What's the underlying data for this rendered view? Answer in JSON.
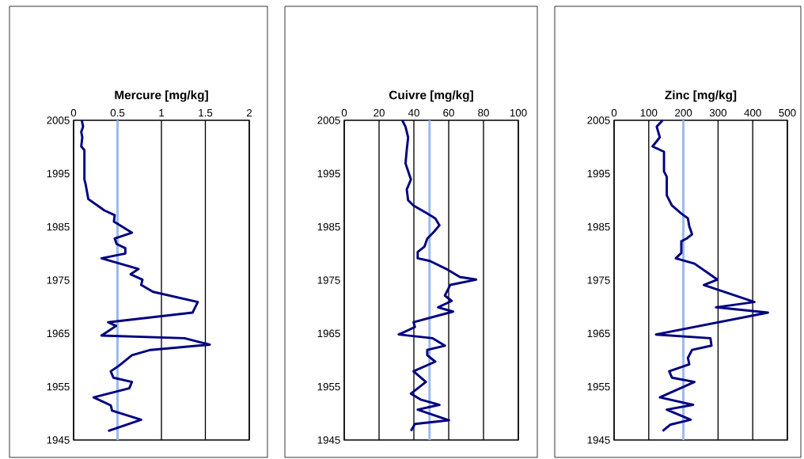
{
  "chart_data": [
    {
      "type": "line",
      "title": "Mercure [mg/kg]",
      "color": "#000080",
      "grid": "x",
      "xlim": [
        0,
        2
      ],
      "xticks": [
        0,
        0.5,
        1,
        1.5,
        2
      ],
      "ylim": [
        1945,
        2005
      ],
      "yticks": [
        1945,
        1955,
        1965,
        1975,
        1985,
        1995,
        2005
      ],
      "ref_lines": [
        {
          "axis": "x",
          "value": 0.5,
          "color": "#9ab9ef"
        }
      ],
      "x": [
        0.093,
        0.108,
        0.087,
        0.099,
        0.087,
        0.123,
        0.123,
        0.138,
        0.168,
        0.273,
        0.348,
        0.468,
        0.459,
        0.664,
        0.468,
        0.49,
        0.589,
        0.589,
        0.318,
        0.739,
        0.649,
        0.784,
        0.769,
        0.904,
        1.414,
        1.354,
        0.393,
        0.483,
        0.318,
        1.264,
        1.55,
        0.874,
        0.664,
        0.514,
        0.423,
        0.453,
        0.664,
        0.634,
        0.228,
        0.423,
        0.438,
        0.769,
        0.393
      ],
      "values": [
        2005,
        2003.8,
        2002.8,
        2001.8,
        2000.1,
        1999.4,
        1993.9,
        1992.9,
        1990.2,
        1989,
        1988.1,
        1987.2,
        1986,
        1983.9,
        1982.8,
        1981.8,
        1981,
        1980,
        1979.1,
        1977.1,
        1976.1,
        1975.1,
        1974.1,
        1972.8,
        1970.9,
        1968.9,
        1967.1,
        1966.4,
        1964.6,
        1964.1,
        1962.9,
        1961.9,
        1960.9,
        1958.9,
        1957.9,
        1956.7,
        1955.9,
        1954.7,
        1953,
        1951.5,
        1950.5,
        1948.8,
        1946.7
      ]
    },
    {
      "type": "line",
      "title": "Cuivre [mg/kg]",
      "color": "#000080",
      "grid": "x",
      "xlim": [
        0,
        100
      ],
      "xticks": [
        0,
        20,
        40,
        60,
        80,
        100
      ],
      "ylim": [
        1945,
        2005
      ],
      "yticks": [
        1945,
        1955,
        1965,
        1975,
        1985,
        1995,
        2005
      ],
      "ref_lines": [
        {
          "axis": "x",
          "value": 49,
          "color": "#9ab9ef"
        }
      ],
      "x": [
        33.3,
        35.2,
        36.7,
        35.9,
        35.2,
        38.3,
        35.9,
        36.7,
        39.8,
        47.7,
        52.3,
        54.7,
        51.6,
        47.7,
        46.1,
        42.2,
        42.2,
        49.2,
        58.6,
        66.4,
        75.8,
        60.9,
        57.8,
        61.7,
        53.9,
        62.5,
        39.8,
        40.6,
        31.3,
        50.8,
        57.8,
        47.7,
        47.7,
        52.3,
        39.8,
        46.9,
        38.3,
        43.8,
        54.7,
        42.2,
        60.2,
        40.6,
        38.3
      ],
      "values": [
        2005,
        2003.8,
        2001.8,
        1999.4,
        1996.9,
        1993.9,
        1992,
        1990,
        1989,
        1987.5,
        1986.6,
        1985.3,
        1984.1,
        1982.8,
        1981.3,
        1980.3,
        1979.1,
        1978.6,
        1977.1,
        1975.6,
        1975.1,
        1974.1,
        1972.1,
        1971.1,
        1969.9,
        1969.1,
        1967.1,
        1966.2,
        1964.8,
        1964.1,
        1962.7,
        1961.9,
        1960.9,
        1959.7,
        1957.9,
        1955.9,
        1953.7,
        1952.6,
        1951.6,
        1950.7,
        1948.7,
        1948,
        1946.7
      ]
    },
    {
      "type": "line",
      "title": "Zinc [mg/kg]",
      "color": "#000080",
      "grid": "x",
      "xlim": [
        0,
        500
      ],
      "xticks": [
        0,
        100,
        200,
        300,
        400,
        500
      ],
      "ylim": [
        1945,
        2005
      ],
      "yticks": [
        1945,
        1955,
        1965,
        1975,
        1985,
        1995,
        2005
      ],
      "ref_lines": [
        {
          "axis": "x",
          "value": 200,
          "color": "#9ab9ef"
        }
      ],
      "x": [
        140,
        123,
        132,
        111,
        144,
        144,
        152,
        152,
        167,
        194,
        213,
        217,
        225,
        209,
        194,
        194,
        178,
        232,
        298,
        259,
        405,
        294,
        444,
        121,
        278,
        281,
        225,
        213,
        217,
        159,
        167,
        232,
        132,
        228,
        152,
        221,
        163,
        140
      ],
      "values": [
        2005,
        2003.8,
        2001.8,
        2000.1,
        1999.1,
        1995.4,
        1994.4,
        1990.9,
        1989,
        1987.5,
        1986.6,
        1985.1,
        1983.6,
        1982.8,
        1982.3,
        1980.1,
        1979.1,
        1978.1,
        1975.1,
        1974.1,
        1970.9,
        1969.9,
        1968.9,
        1964.8,
        1964.1,
        1962.7,
        1961.9,
        1960.4,
        1959.2,
        1957.9,
        1956.7,
        1955.9,
        1953,
        1951.6,
        1950.7,
        1948.8,
        1947.9,
        1946.7
      ]
    }
  ]
}
